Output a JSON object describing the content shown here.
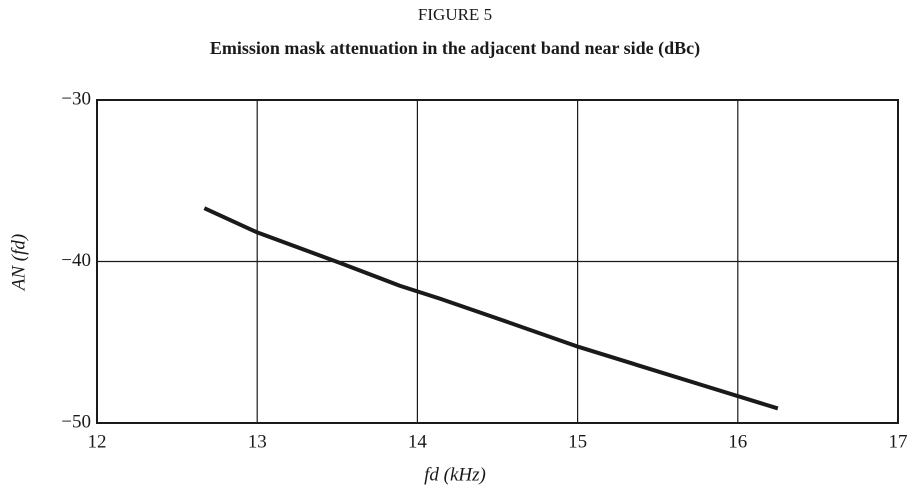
{
  "chart_data": {
    "type": "line",
    "title": "FIGURE 5",
    "subtitle": "Emission mask attenuation in the adjacent band near side (dBc)",
    "x_label": "fd (kHz)",
    "y_label": "AN (fd)",
    "x": [
      12.67,
      13.0,
      13.52,
      13.89,
      14.14,
      14.52,
      15.01,
      15.76,
      16.25
    ],
    "series": [
      {
        "name": "AN (fd)",
        "color": "#1a1a1a",
        "values": [
          -36.7,
          -38.2,
          -40.1,
          -41.5,
          -42.3,
          -43.6,
          -45.3,
          -47.6,
          -49.1
        ]
      }
    ],
    "xlim": [
      12,
      17
    ],
    "xticks": [
      12,
      13,
      14,
      15,
      16,
      17
    ],
    "ylim": [
      -50,
      -30
    ],
    "yticks": [
      {
        "value": -50,
        "label": "−50"
      },
      {
        "value": -40,
        "label": "−40"
      },
      {
        "value": -30,
        "label": "−30"
      }
    ],
    "grid": true
  }
}
